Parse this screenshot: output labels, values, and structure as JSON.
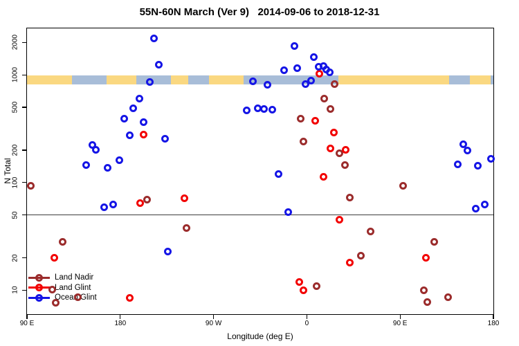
{
  "title": "55N-60N March (Ver 9)   2014-09-06 to 2018-12-31",
  "chart_data": {
    "type": "scatter",
    "title": "55N-60N March (Ver 9)   2014-09-06 to 2018-12-31",
    "xlabel": "Longitude (deg E)",
    "ylabel": "N Total",
    "x_axis": {
      "min": 90,
      "max": 540,
      "ticks": [
        {
          "value": 90,
          "label": "90 E"
        },
        {
          "value": 180,
          "label": "180"
        },
        {
          "value": 270,
          "label": "90 W"
        },
        {
          "value": 360,
          "label": "0"
        },
        {
          "value": 450,
          "label": "90 E"
        },
        {
          "value": 540,
          "label": "180"
        }
      ]
    },
    "y_axis": {
      "scale": "log",
      "min": 6,
      "max": 2700,
      "ticks": [
        10,
        20,
        50,
        100,
        200,
        500,
        1000,
        2000
      ]
    },
    "reference_line_y": 50,
    "land_ocean_band": {
      "description": "land/ocean strip for 55N-60N drawn near N=1000",
      "value_top": 980,
      "value_bottom": 810,
      "land_color": "#FAD881",
      "ocean_color": "#A8BDD8",
      "segments": [
        [
          0,
          65,
          "land"
        ],
        [
          65,
          115,
          "ocean"
        ],
        [
          115,
          158,
          "land"
        ],
        [
          158,
          208,
          "ocean"
        ],
        [
          208,
          233,
          "land"
        ],
        [
          233,
          263,
          "ocean"
        ],
        [
          263,
          313,
          "land"
        ],
        [
          313,
          450,
          "ocean"
        ],
        [
          450,
          610,
          "land"
        ],
        [
          610,
          640,
          "ocean"
        ],
        [
          640,
          670,
          "land"
        ],
        [
          670,
          674,
          "ocean"
        ]
      ]
    },
    "legend": {
      "position": "bottom-left",
      "entries": [
        "Land Nadir",
        "Land Glint",
        "Ocean Glint"
      ]
    },
    "series": [
      {
        "name": "Land Nadir",
        "color": "#9B2C2C",
        "points": [
          [
            94.0,
            93
          ],
          [
            452.8,
            93
          ],
          [
            205.7,
            69
          ],
          [
            386.5,
            825
          ],
          [
            376.5,
            605
          ],
          [
            382.7,
            485
          ],
          [
            354.2,
            394
          ],
          [
            356.6,
            240
          ],
          [
            391.6,
            187
          ],
          [
            396.7,
            145
          ],
          [
            401.2,
            73
          ],
          [
            244.2,
            38
          ],
          [
            124.1,
            28
          ],
          [
            421.2,
            35
          ],
          [
            482.8,
            28
          ],
          [
            412.3,
            21
          ],
          [
            369.3,
            11
          ],
          [
            472.8,
            10
          ],
          [
            476.1,
            7.8
          ],
          [
            496.1,
            8.6
          ],
          [
            114.5,
            10.2
          ],
          [
            139.4,
            8.6
          ],
          [
            117.4,
            7.7
          ]
        ]
      },
      {
        "name": "Land Glint",
        "color": "#F20202",
        "points": [
          [
            202.2,
            280
          ],
          [
            372.4,
            1030
          ],
          [
            367.8,
            375
          ],
          [
            386.0,
            290
          ],
          [
            382.7,
            208
          ],
          [
            397.6,
            202
          ],
          [
            376.0,
            113
          ],
          [
            199.0,
            64
          ],
          [
            242.0,
            72
          ],
          [
            391.6,
            45
          ],
          [
            116.2,
            20
          ],
          [
            401.2,
            18
          ],
          [
            475.1,
            20
          ],
          [
            352.6,
            12
          ],
          [
            356.6,
            10
          ],
          [
            189.0,
            8.5
          ]
        ]
      },
      {
        "name": "Ocean Glint",
        "color": "#1515E6",
        "points": [
          [
            212.6,
            2190
          ],
          [
            217.5,
            1250
          ],
          [
            208.6,
            858
          ],
          [
            308.1,
            875
          ],
          [
            198.4,
            600
          ],
          [
            192.8,
            490
          ],
          [
            183.5,
            390
          ],
          [
            202.4,
            365
          ],
          [
            302.1,
            465
          ],
          [
            312.6,
            490
          ],
          [
            318.8,
            480
          ],
          [
            327.0,
            478
          ],
          [
            348.2,
            1850
          ],
          [
            366.9,
            1460
          ],
          [
            338.2,
            1110
          ],
          [
            350.9,
            1150
          ],
          [
            371.1,
            1180
          ],
          [
            375.8,
            1200
          ],
          [
            378.5,
            1120
          ],
          [
            382.0,
            1050
          ],
          [
            363.8,
            890
          ],
          [
            358.4,
            825
          ],
          [
            321.9,
            810
          ],
          [
            332.6,
            120
          ],
          [
            341.9,
            53
          ],
          [
            226.2,
            23
          ],
          [
            153.0,
            224
          ],
          [
            156.6,
            201
          ],
          [
            178.8,
            162
          ],
          [
            147.2,
            146
          ],
          [
            167.9,
            138
          ],
          [
            189.3,
            273
          ],
          [
            222.9,
            255
          ],
          [
            164.6,
            59
          ],
          [
            172.8,
            63
          ],
          [
            510.9,
            225
          ],
          [
            514.9,
            197
          ],
          [
            505.8,
            147
          ],
          [
            525.3,
            143
          ],
          [
            537.6,
            166
          ],
          [
            531.6,
            63
          ],
          [
            523.1,
            57
          ]
        ]
      }
    ]
  }
}
